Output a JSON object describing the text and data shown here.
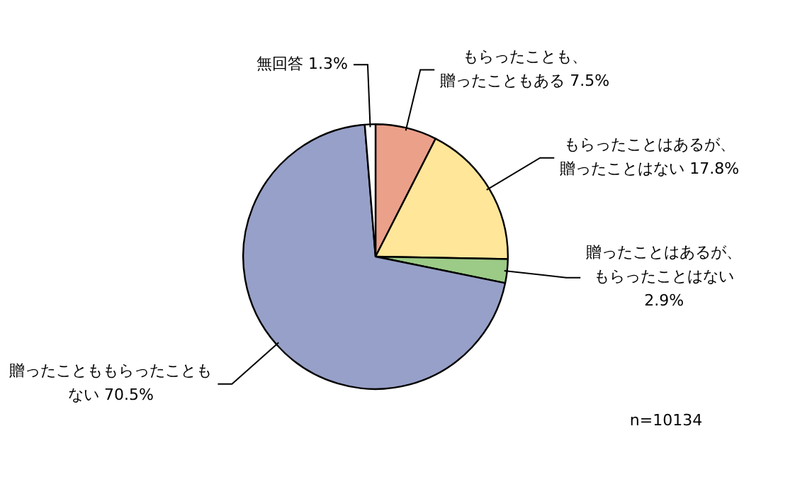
{
  "chart_data": {
    "type": "pie",
    "categories": [
      "もらったことも、贈ったこともある",
      "もらったことはあるが、贈ったことはない",
      "贈ったことはあるが、もらったことはない",
      "贈ったことももらったこともない",
      "無回答"
    ],
    "values": [
      7.5,
      17.8,
      2.9,
      70.5,
      1.3
    ],
    "colors": [
      "#eba08a",
      "#ffe699",
      "#9bcb86",
      "#97a0c8",
      "#ffffff"
    ],
    "value_labels": [
      "7.5%",
      "17.8%",
      "2.9%",
      "70.5%",
      "1.3%"
    ],
    "annotations": [
      "n=10134"
    ]
  }
}
